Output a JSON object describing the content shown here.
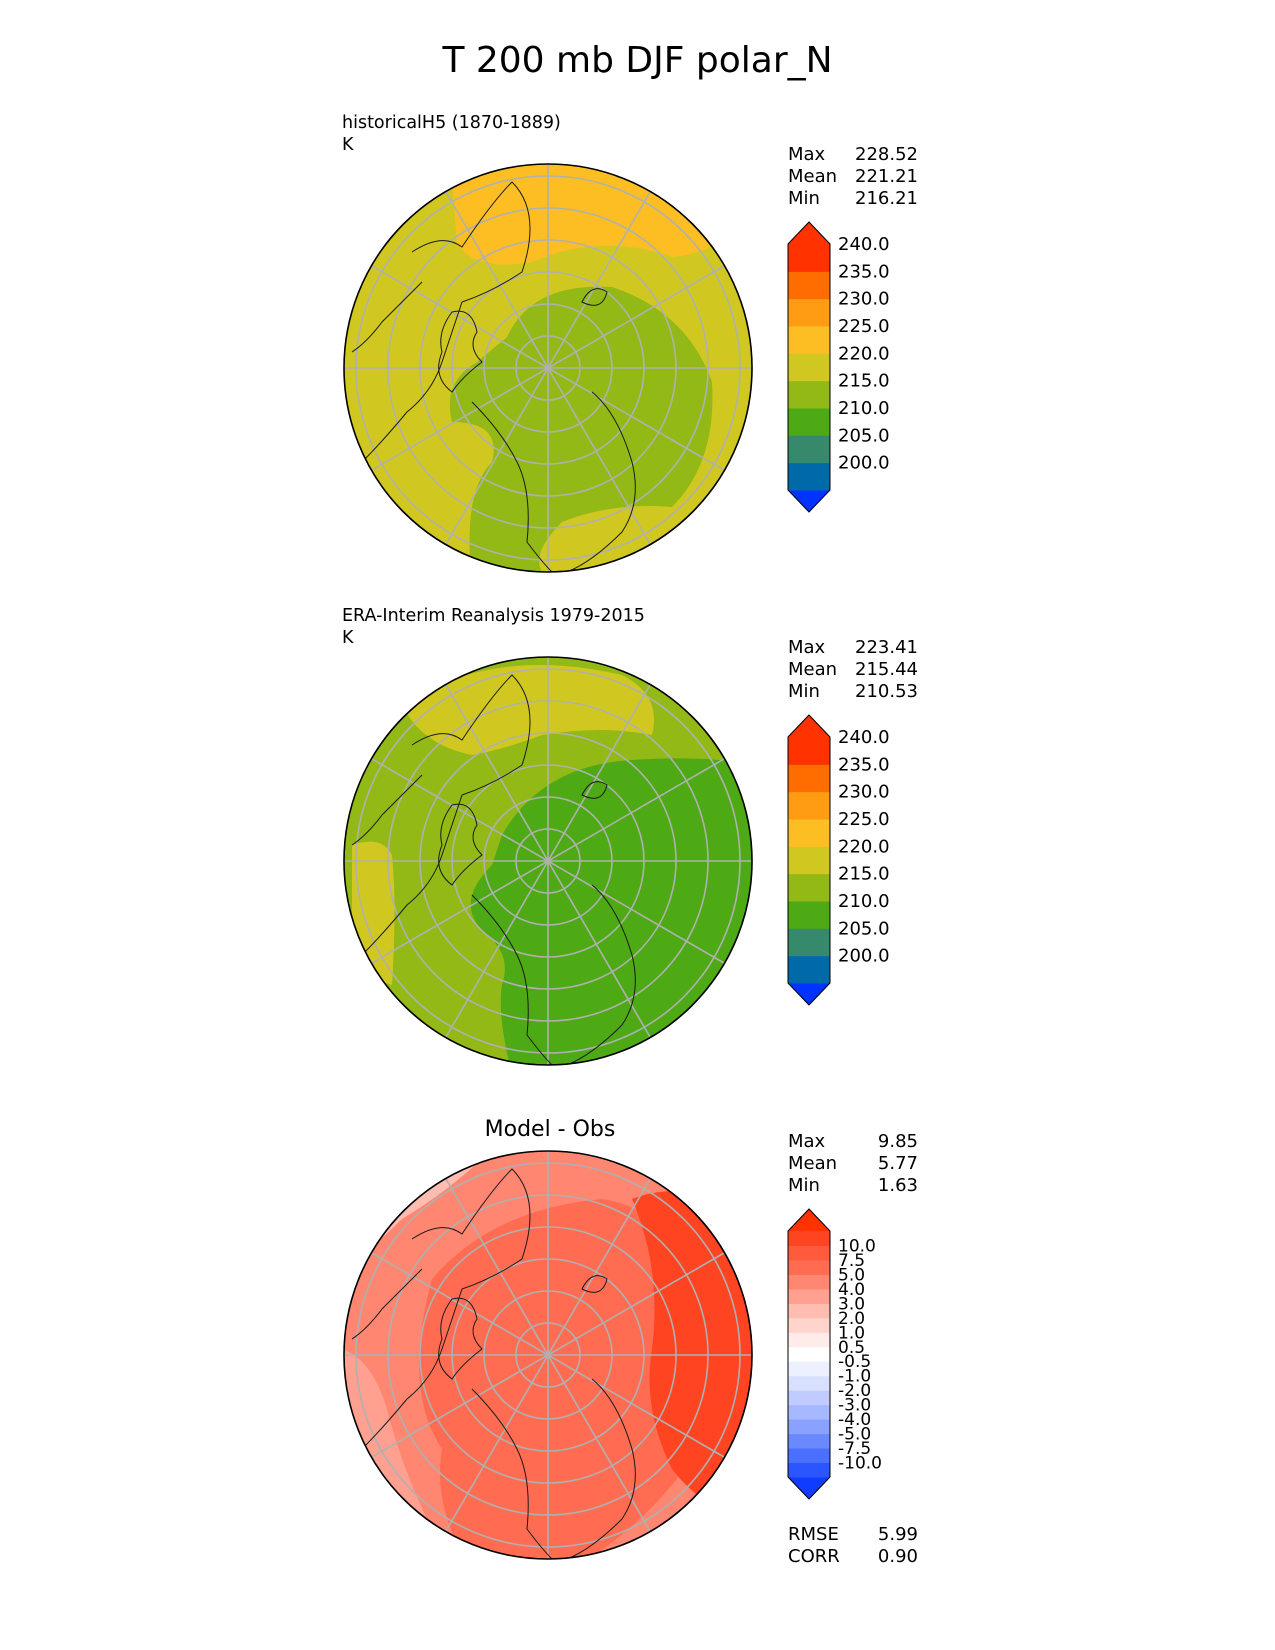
{
  "title": "T 200 mb DJF polar_N",
  "panels": [
    {
      "id": "model",
      "label_line1": "historicalH5 (1870-1889)",
      "label_line2": "K",
      "stats": [
        {
          "k": "Max",
          "v": "228.52"
        },
        {
          "k": "Mean",
          "v": "221.21"
        },
        {
          "k": "Min",
          "v": "216.21"
        }
      ],
      "colorbar": {
        "colors": [
          "#0033ff",
          "#006aa8",
          "#36896a",
          "#4da914",
          "#93b917",
          "#d0c821",
          "#fdbe24",
          "#ff9c12",
          "#ff6c00",
          "#ff3200",
          "#ff3200"
        ],
        "ticks": [
          "200.0",
          "205.0",
          "210.0",
          "215.0",
          "220.0",
          "225.0",
          "230.0",
          "235.0",
          "240.0"
        ]
      }
    },
    {
      "id": "obs",
      "label_line1": "ERA-Interim Reanalysis 1979-2015",
      "label_line2": "K",
      "stats": [
        {
          "k": "Max",
          "v": "223.41"
        },
        {
          "k": "Mean",
          "v": "215.44"
        },
        {
          "k": "Min",
          "v": "210.53"
        }
      ],
      "colorbar": {
        "colors": [
          "#0033ff",
          "#006aa8",
          "#36896a",
          "#4da914",
          "#93b917",
          "#d0c821",
          "#fdbe24",
          "#ff9c12",
          "#ff6c00",
          "#ff3200",
          "#ff3200"
        ],
        "ticks": [
          "200.0",
          "205.0",
          "210.0",
          "215.0",
          "220.0",
          "225.0",
          "230.0",
          "235.0",
          "240.0"
        ]
      }
    },
    {
      "id": "diff",
      "title": "Model - Obs",
      "stats": [
        {
          "k": "Max",
          "v": "9.85"
        },
        {
          "k": "Mean",
          "v": "5.77"
        },
        {
          "k": "Min",
          "v": "1.63"
        }
      ],
      "extra_stats": [
        {
          "k": "RMSE",
          "v": "5.99"
        },
        {
          "k": "CORR",
          "v": "0.90"
        }
      ],
      "colorbar": {
        "colors": [
          "#0f3cff",
          "#2a55ff",
          "#4b6fff",
          "#6b89ff",
          "#8aa2ff",
          "#a6b8ff",
          "#c0ccff",
          "#d8e0ff",
          "#ecf0ff",
          "#ffffff",
          "#ffecea",
          "#ffd4cc",
          "#ffbcb0",
          "#ffa090",
          "#ff8670",
          "#ff6c52",
          "#ff5a3c",
          "#ff4422",
          "#ff3200"
        ],
        "ticks": [
          "-10.0",
          "-7.5",
          "-5.0",
          "-4.0",
          "-3.0",
          "-2.0",
          "-1.0",
          "-0.5",
          "0.5",
          "1.0",
          "2.0",
          "3.0",
          "4.0",
          "5.0",
          "7.5",
          "10.0"
        ]
      }
    }
  ]
}
